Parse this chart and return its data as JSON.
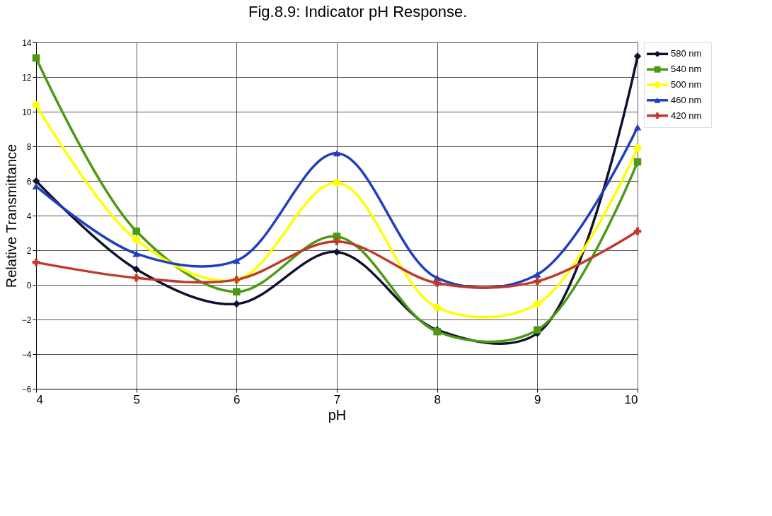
{
  "chart_data": {
    "type": "line",
    "title": "Fig.8.9: Indicator pH Response.",
    "xlabel": "pH",
    "ylabel": "Relative Transmittance",
    "x": [
      4,
      5,
      6,
      7,
      8,
      9,
      10
    ],
    "series": [
      {
        "name": "580 nm",
        "color": "#101030",
        "marker": "diamond",
        "values": [
          6.0,
          0.9,
          -1.1,
          1.9,
          -2.6,
          -2.8,
          13.2
        ]
      },
      {
        "name": "540 nm",
        "color": "#4a9a12",
        "marker": "square",
        "values": [
          13.1,
          3.1,
          -0.4,
          2.8,
          -2.7,
          -2.6,
          7.1
        ]
      },
      {
        "name": "500 nm",
        "color": "#ffff00",
        "marker": "circle",
        "values": [
          10.4,
          2.6,
          0.3,
          5.9,
          -1.3,
          -1.1,
          7.9
        ]
      },
      {
        "name": "460 nm",
        "color": "#1f3fbf",
        "marker": "triangle",
        "values": [
          5.7,
          1.8,
          1.4,
          7.6,
          0.4,
          0.6,
          9.1
        ]
      },
      {
        "name": "420 nm",
        "color": "#c0392b",
        "marker": "cross",
        "values": [
          1.3,
          0.4,
          0.3,
          2.5,
          0.1,
          0.2,
          3.1
        ]
      }
    ],
    "xlim": [
      4,
      10
    ],
    "xticks": [
      4,
      5,
      6,
      7,
      8,
      9,
      10
    ],
    "ylim": [
      -6,
      14
    ],
    "yticks": [
      -6,
      -4,
      -2,
      0,
      2,
      4,
      6,
      8,
      10,
      12,
      14
    ],
    "grid": true,
    "legend": "right",
    "line_style": "solid"
  }
}
